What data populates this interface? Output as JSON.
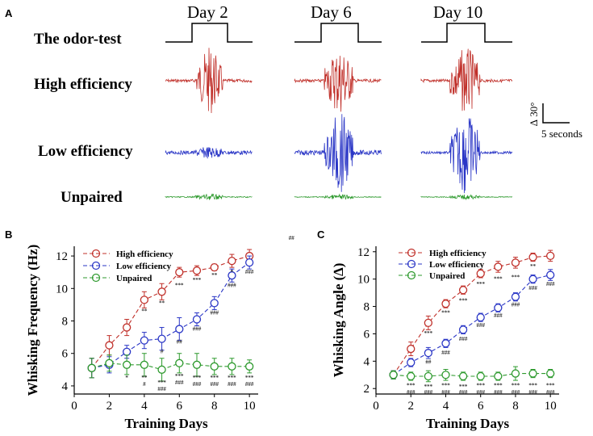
{
  "colors": {
    "high": "#c0302a",
    "low": "#2a36c6",
    "unpaired": "#2e9a2e",
    "sig": "#444444",
    "axis": "#000000"
  },
  "panel_a": {
    "label": "A",
    "days": [
      "Day 2",
      "Day 6",
      "Day 10"
    ],
    "rows": [
      "The odor-test",
      "High efficiency",
      "Low efficiency",
      "Unpaired"
    ],
    "scale": {
      "angle": "∆ 30°",
      "time": "5 seconds"
    },
    "amplitude": {
      "high": [
        [
          0.15,
          1.0,
          0.4
        ],
        [
          0.15,
          0.9,
          0.85
        ],
        [
          0.15,
          0.85,
          1.0
        ]
      ],
      "low": [
        [
          0.15,
          0.1,
          0.1
        ],
        [
          0.2,
          1.0,
          0.35
        ],
        [
          0.1,
          0.95,
          0.85
        ]
      ],
      "unpaired": [
        [
          0.2,
          0.25,
          0.3
        ],
        [
          0.15,
          0.2,
          0.25
        ],
        [
          0.15,
          0.2,
          0.2
        ]
      ]
    }
  },
  "chart_data": [
    {
      "panel": "B",
      "type": "line",
      "xlabel": "Training Days",
      "ylabel": "Whisking Frequency (Hz)",
      "xlim": [
        0,
        10.5
      ],
      "ylim": [
        3.5,
        12.6
      ],
      "xticks": [
        0,
        2,
        4,
        6,
        8,
        10
      ],
      "yticks": [
        4,
        6,
        8,
        10,
        12
      ],
      "x": [
        1,
        2,
        3,
        4,
        5,
        6,
        7,
        8,
        9,
        10
      ],
      "series": [
        {
          "name": "High efficiency",
          "key": "high",
          "values": [
            5.1,
            6.5,
            7.6,
            9.3,
            9.8,
            11.0,
            11.1,
            11.3,
            11.7,
            12.0
          ],
          "err": [
            0.6,
            0.6,
            0.5,
            0.5,
            0.5,
            0.3,
            0.3,
            0.2,
            0.4,
            0.4
          ]
        },
        {
          "name": "Low efficiency",
          "key": "low",
          "values": [
            5.1,
            5.3,
            6.1,
            6.8,
            6.9,
            7.5,
            8.1,
            9.1,
            10.8,
            11.6
          ],
          "err": [
            0.6,
            0.5,
            0.4,
            0.5,
            0.7,
            0.7,
            0.4,
            0.4,
            0.4,
            0.4
          ]
        },
        {
          "name": "Unpaired",
          "key": "unpaired",
          "values": [
            5.1,
            5.4,
            5.3,
            5.3,
            5.0,
            5.4,
            5.3,
            5.2,
            5.2,
            5.2
          ],
          "err": [
            0.6,
            0.5,
            0.6,
            0.7,
            0.7,
            0.6,
            0.7,
            0.5,
            0.5,
            0.4
          ]
        }
      ],
      "annotations": [
        {
          "x": 4,
          "y": 8.5,
          "text": "**"
        },
        {
          "x": 5,
          "y": 9.0,
          "text": "**"
        },
        {
          "x": 6,
          "y": 10.1,
          "text": "***"
        },
        {
          "x": 7,
          "y": 10.4,
          "text": "***"
        },
        {
          "x": 8,
          "y": 10.7,
          "text": "**"
        },
        {
          "x": 9,
          "y": 10.9,
          "text": "*"
        },
        {
          "x": 5,
          "y": 6.0,
          "text": "#"
        },
        {
          "x": 6,
          "y": 6.6,
          "text": "##"
        },
        {
          "x": 7,
          "y": 7.4,
          "text": "###"
        },
        {
          "x": 8,
          "y": 8.4,
          "text": "###"
        },
        {
          "x": 9,
          "y": 10.1,
          "text": "###"
        },
        {
          "x": 10,
          "y": 10.9,
          "text": "###"
        },
        {
          "x": 3,
          "y": 4.4,
          "text": "*"
        },
        {
          "x": 4,
          "y": 4.4,
          "text": "**"
        },
        {
          "x": 5,
          "y": 4.1,
          "text": "***"
        },
        {
          "x": 6,
          "y": 4.5,
          "text": "***"
        },
        {
          "x": 7,
          "y": 4.4,
          "text": "***"
        },
        {
          "x": 8,
          "y": 4.4,
          "text": "***"
        },
        {
          "x": 9,
          "y": 4.4,
          "text": "***"
        },
        {
          "x": 10,
          "y": 4.4,
          "text": "***"
        },
        {
          "x": 4,
          "y": 4.0,
          "text": "#"
        },
        {
          "x": 5,
          "y": 3.7,
          "text": "###"
        },
        {
          "x": 6,
          "y": 4.1,
          "text": "###"
        },
        {
          "x": 7,
          "y": 4.0,
          "text": "###"
        },
        {
          "x": 8,
          "y": 4.0,
          "text": "###"
        },
        {
          "x": 9,
          "y": 4.0,
          "text": "###"
        },
        {
          "x": 10,
          "y": 4.0,
          "text": "###"
        }
      ],
      "stray_marks": [
        {
          "x": 12.4,
          "y": 13.0,
          "text": "##"
        }
      ]
    },
    {
      "panel": "C",
      "type": "line",
      "xlabel": "Training Days",
      "ylabel": "Whisking Angle (∆)",
      "xlim": [
        0,
        10.5
      ],
      "ylim": [
        1.6,
        12.4
      ],
      "xticks": [
        0,
        2,
        4,
        6,
        8,
        10
      ],
      "yticks": [
        2,
        4,
        6,
        8,
        10,
        12
      ],
      "x": [
        1,
        2,
        3,
        4,
        5,
        6,
        7,
        8,
        9,
        10
      ],
      "series": [
        {
          "name": "High efficiency",
          "key": "high",
          "values": [
            3.0,
            4.9,
            6.8,
            8.2,
            9.2,
            10.4,
            10.9,
            11.2,
            11.6,
            11.7
          ],
          "err": [
            0.3,
            0.5,
            0.5,
            0.3,
            0.3,
            0.3,
            0.4,
            0.4,
            0.3,
            0.4
          ]
        },
        {
          "name": "Low efficiency",
          "key": "low",
          "values": [
            3.0,
            3.9,
            4.6,
            5.3,
            6.3,
            7.2,
            7.9,
            8.7,
            10.0,
            10.3
          ],
          "err": [
            0.3,
            0.3,
            0.4,
            0.3,
            0.3,
            0.3,
            0.3,
            0.3,
            0.3,
            0.4
          ]
        },
        {
          "name": "Unpaired",
          "key": "unpaired",
          "values": [
            3.0,
            2.9,
            2.9,
            3.0,
            2.9,
            2.9,
            2.9,
            3.1,
            3.1,
            3.1
          ],
          "err": [
            0.3,
            0.3,
            0.4,
            0.4,
            0.3,
            0.3,
            0.3,
            0.5,
            0.3,
            0.3
          ]
        }
      ],
      "annotations": [
        {
          "x": 3,
          "y": 5.9,
          "text": "***"
        },
        {
          "x": 4,
          "y": 7.4,
          "text": "***"
        },
        {
          "x": 5,
          "y": 8.3,
          "text": "***"
        },
        {
          "x": 6,
          "y": 9.5,
          "text": "***"
        },
        {
          "x": 7,
          "y": 9.9,
          "text": "***"
        },
        {
          "x": 8,
          "y": 10.0,
          "text": "***"
        },
        {
          "x": 9,
          "y": 10.8,
          "text": "**"
        },
        {
          "x": 3,
          "y": 3.8,
          "text": "##"
        },
        {
          "x": 4,
          "y": 4.5,
          "text": "###"
        },
        {
          "x": 5,
          "y": 5.5,
          "text": "###"
        },
        {
          "x": 6,
          "y": 6.5,
          "text": "###"
        },
        {
          "x": 7,
          "y": 7.2,
          "text": "###"
        },
        {
          "x": 8,
          "y": 8.0,
          "text": "###"
        },
        {
          "x": 9,
          "y": 9.2,
          "text": "###"
        },
        {
          "x": 10,
          "y": 9.5,
          "text": "###"
        },
        {
          "x": 2,
          "y": 2.1,
          "text": "***"
        },
        {
          "x": 3,
          "y": 2.0,
          "text": "***"
        },
        {
          "x": 4,
          "y": 2.1,
          "text": "***"
        },
        {
          "x": 5,
          "y": 2.0,
          "text": "***"
        },
        {
          "x": 6,
          "y": 2.1,
          "text": "***"
        },
        {
          "x": 7,
          "y": 2.1,
          "text": "***"
        },
        {
          "x": 8,
          "y": 2.1,
          "text": "***"
        },
        {
          "x": 9,
          "y": 2.1,
          "text": "***"
        },
        {
          "x": 10,
          "y": 2.1,
          "text": "***"
        },
        {
          "x": 2,
          "y": 1.6,
          "text": "###"
        },
        {
          "x": 3,
          "y": 1.6,
          "text": "###"
        },
        {
          "x": 4,
          "y": 1.6,
          "text": "###"
        },
        {
          "x": 5,
          "y": 1.6,
          "text": "###"
        },
        {
          "x": 6,
          "y": 1.6,
          "text": "###"
        },
        {
          "x": 7,
          "y": 1.6,
          "text": "###"
        },
        {
          "x": 8,
          "y": 1.6,
          "text": "###"
        },
        {
          "x": 9,
          "y": 1.6,
          "text": "###"
        },
        {
          "x": 10,
          "y": 1.6,
          "text": "###"
        }
      ]
    }
  ]
}
